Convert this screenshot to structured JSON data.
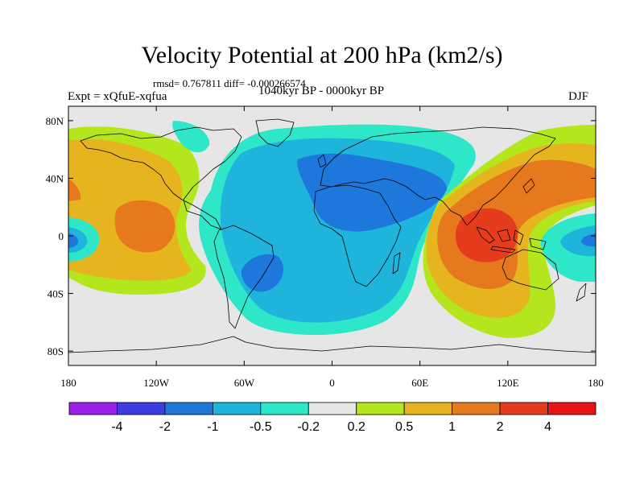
{
  "title": "Velocity Potential at 200 hPa (km2/s)",
  "stats": "rmsd= 0.767811  diff= -0.000266574",
  "experiment": "Expt = xQfuE-xqfua",
  "period": "1040kyr BP - 0000kyr BP",
  "season": "DJF",
  "chart_data": {
    "type": "heatmap",
    "projection": "cylindrical-equidistant",
    "field": "200 hPa velocity potential difference",
    "units": "km2/s",
    "xlim": [
      -180,
      180
    ],
    "ylim": [
      -90,
      90
    ],
    "lon_ticks": [
      {
        "value": -180,
        "label": "180"
      },
      {
        "value": -120,
        "label": "120W"
      },
      {
        "value": -60,
        "label": "60W"
      },
      {
        "value": 0,
        "label": "0"
      },
      {
        "value": 60,
        "label": "60E"
      },
      {
        "value": 120,
        "label": "120E"
      },
      {
        "value": 180,
        "label": "180"
      }
    ],
    "lat_ticks": [
      {
        "value": 80,
        "label": "80N"
      },
      {
        "value": 40,
        "label": "40N"
      },
      {
        "value": 0,
        "label": "0"
      },
      {
        "value": -40,
        "label": "40S"
      },
      {
        "value": -80,
        "label": "80S"
      }
    ],
    "colorbar": {
      "levels": [
        -4,
        -2,
        -1,
        -0.5,
        -0.2,
        0.2,
        0.5,
        1,
        2,
        4
      ],
      "labels": [
        "-4",
        "-2",
        "-1",
        "-0.5",
        "-0.2",
        "0.2",
        "0.5",
        "1",
        "2",
        "4"
      ],
      "colors": [
        "#9b1fe8",
        "#3c3ce0",
        "#1e78dc",
        "#1eb4dc",
        "#2ee6c8",
        "#e6e6e6",
        "#b4e61e",
        "#e6b41e",
        "#e6781e",
        "#e63c1e",
        "#e61414"
      ]
    },
    "features": [
      {
        "name": "Atlantic-Africa negative center",
        "lon": -5,
        "lat": 10,
        "value": -2
      },
      {
        "name": "South America negative center",
        "lon": -55,
        "lat": -20,
        "value": -1.5
      },
      {
        "name": "Maritime Continent positive center",
        "lon": 100,
        "lat": -5,
        "value": 2.5
      },
      {
        "name": "East Pacific positive center",
        "lon": -130,
        "lat": 5,
        "value": 1.2
      },
      {
        "name": "Dateline equatorial negative",
        "lon": 175,
        "lat": 0,
        "value": -1.2
      }
    ]
  }
}
